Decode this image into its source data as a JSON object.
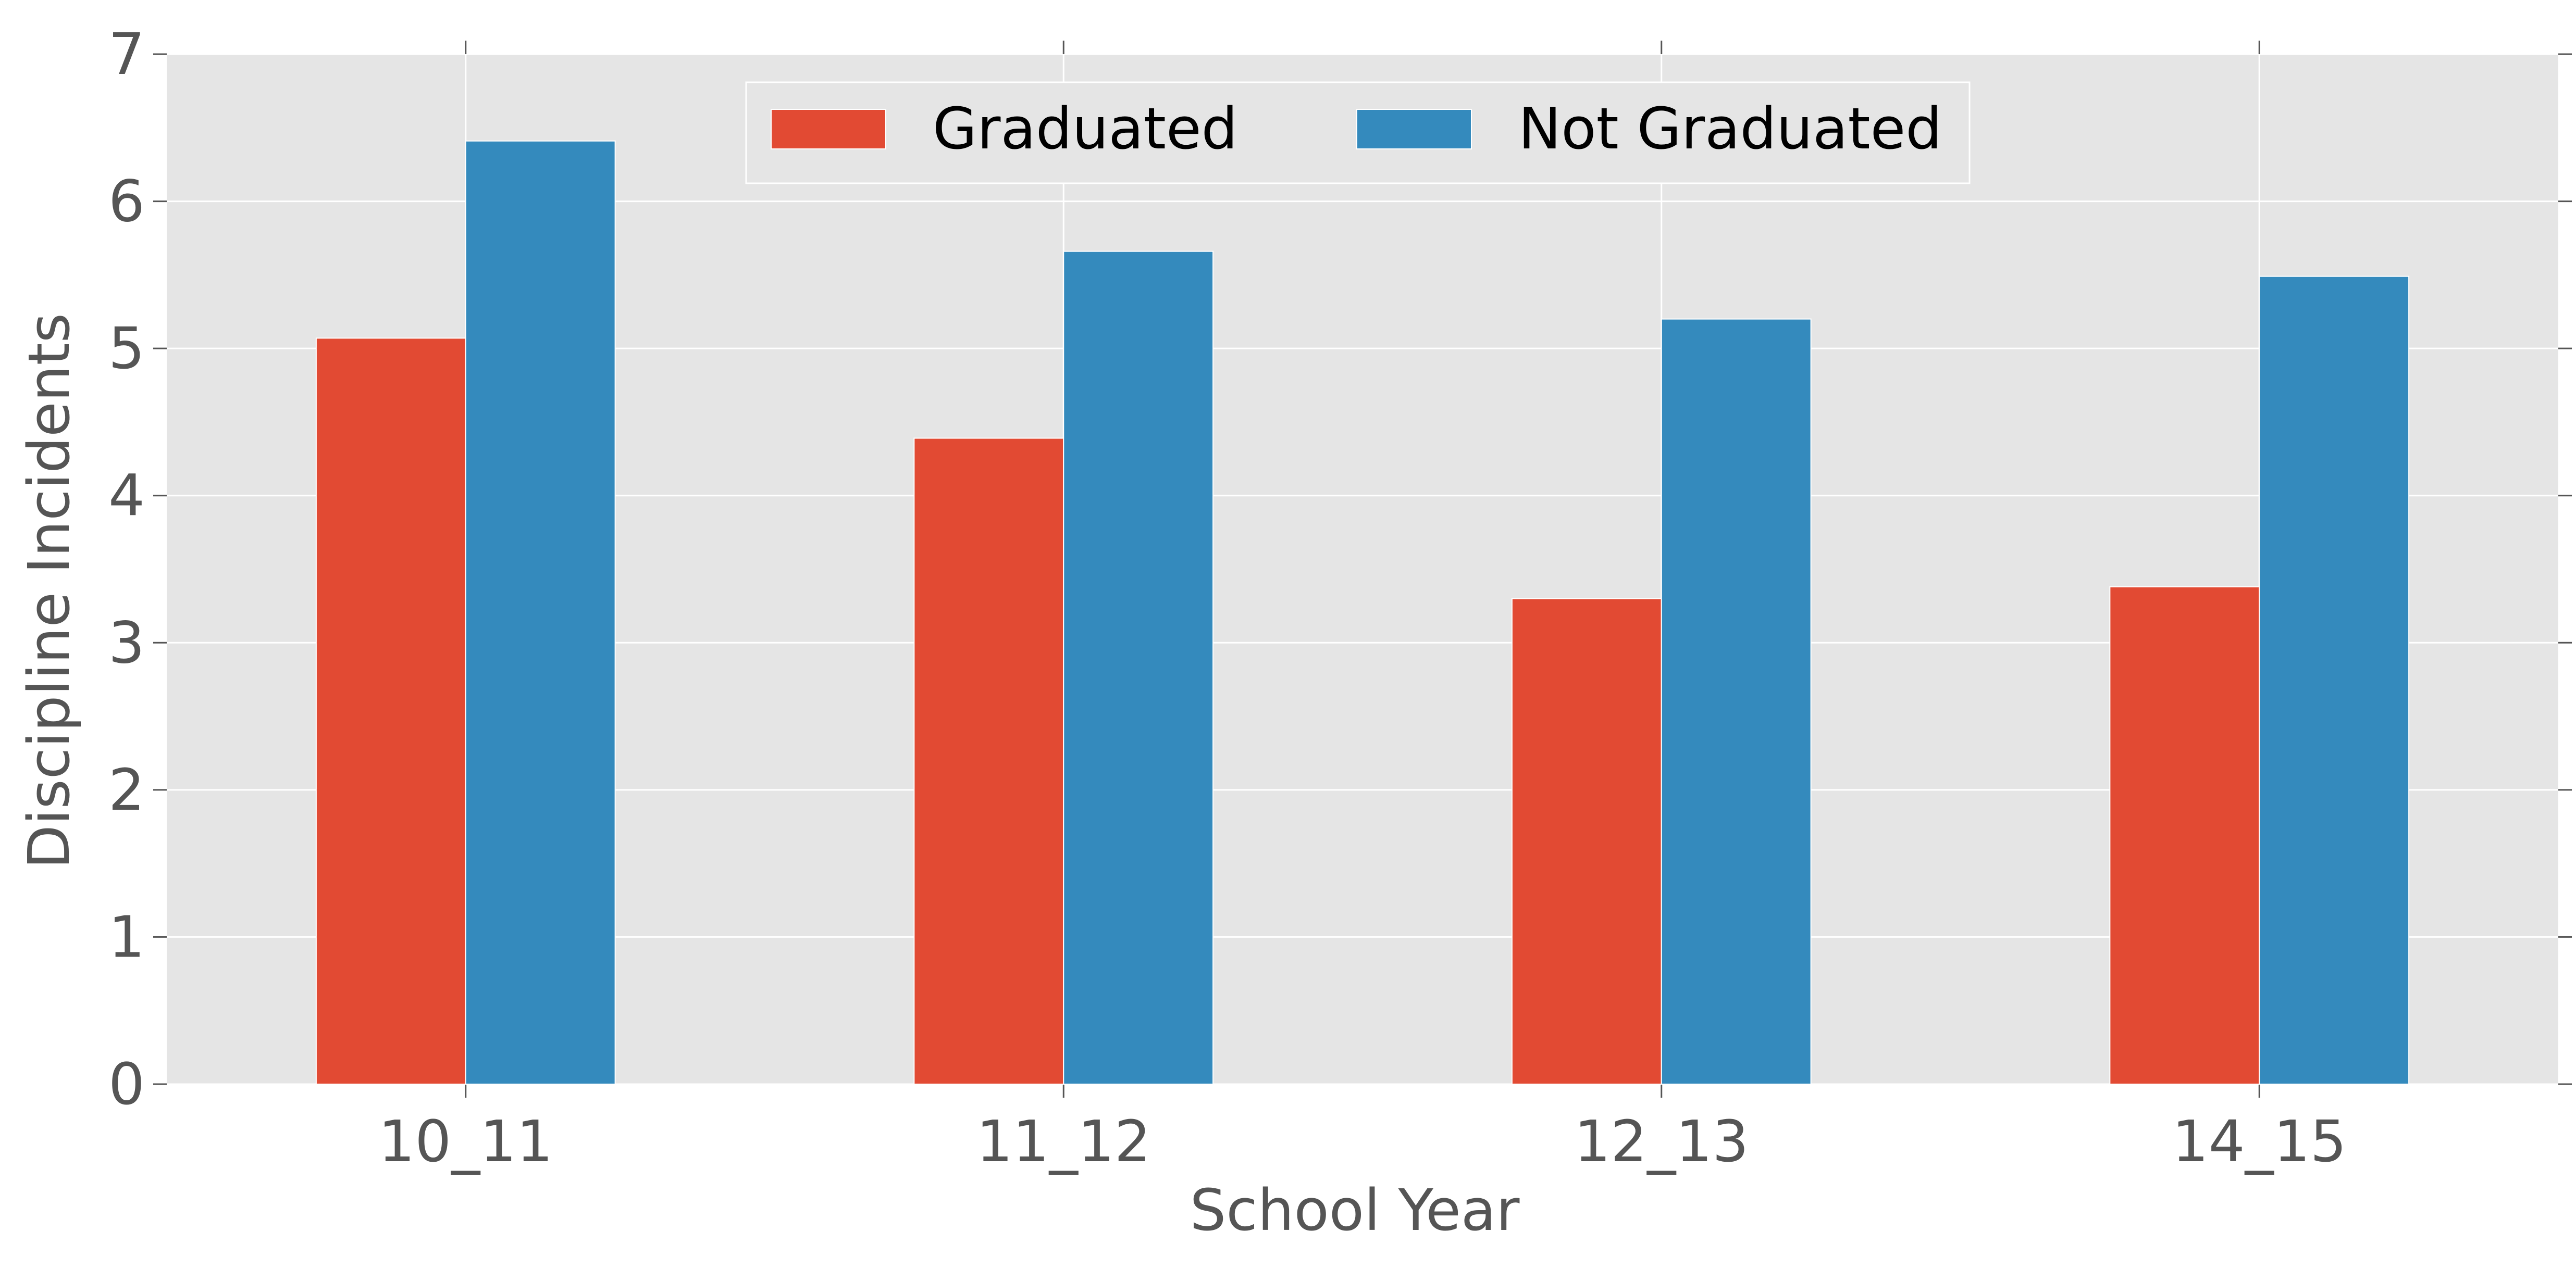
{
  "chart_data": {
    "type": "bar",
    "title": "",
    "xlabel": "School Year",
    "ylabel": "Discipline Incidents",
    "categories": [
      "10_11",
      "11_12",
      "12_13",
      "14_15"
    ],
    "series": [
      {
        "name": "Graduated",
        "color": "#E24A33",
        "values": [
          5.07,
          4.39,
          3.3,
          3.38
        ]
      },
      {
        "name": "Not Graduated",
        "color": "#348ABD",
        "values": [
          6.41,
          5.66,
          5.2,
          5.49
        ]
      }
    ],
    "ylim": [
      0,
      7
    ],
    "yticks": [
      "0",
      "1",
      "2",
      "3",
      "4",
      "5",
      "6",
      "7"
    ],
    "grid": true,
    "legend_position": "top-center",
    "style": {
      "plot_background": "#E5E5E5",
      "grid_color": "#FFFFFF"
    }
  }
}
